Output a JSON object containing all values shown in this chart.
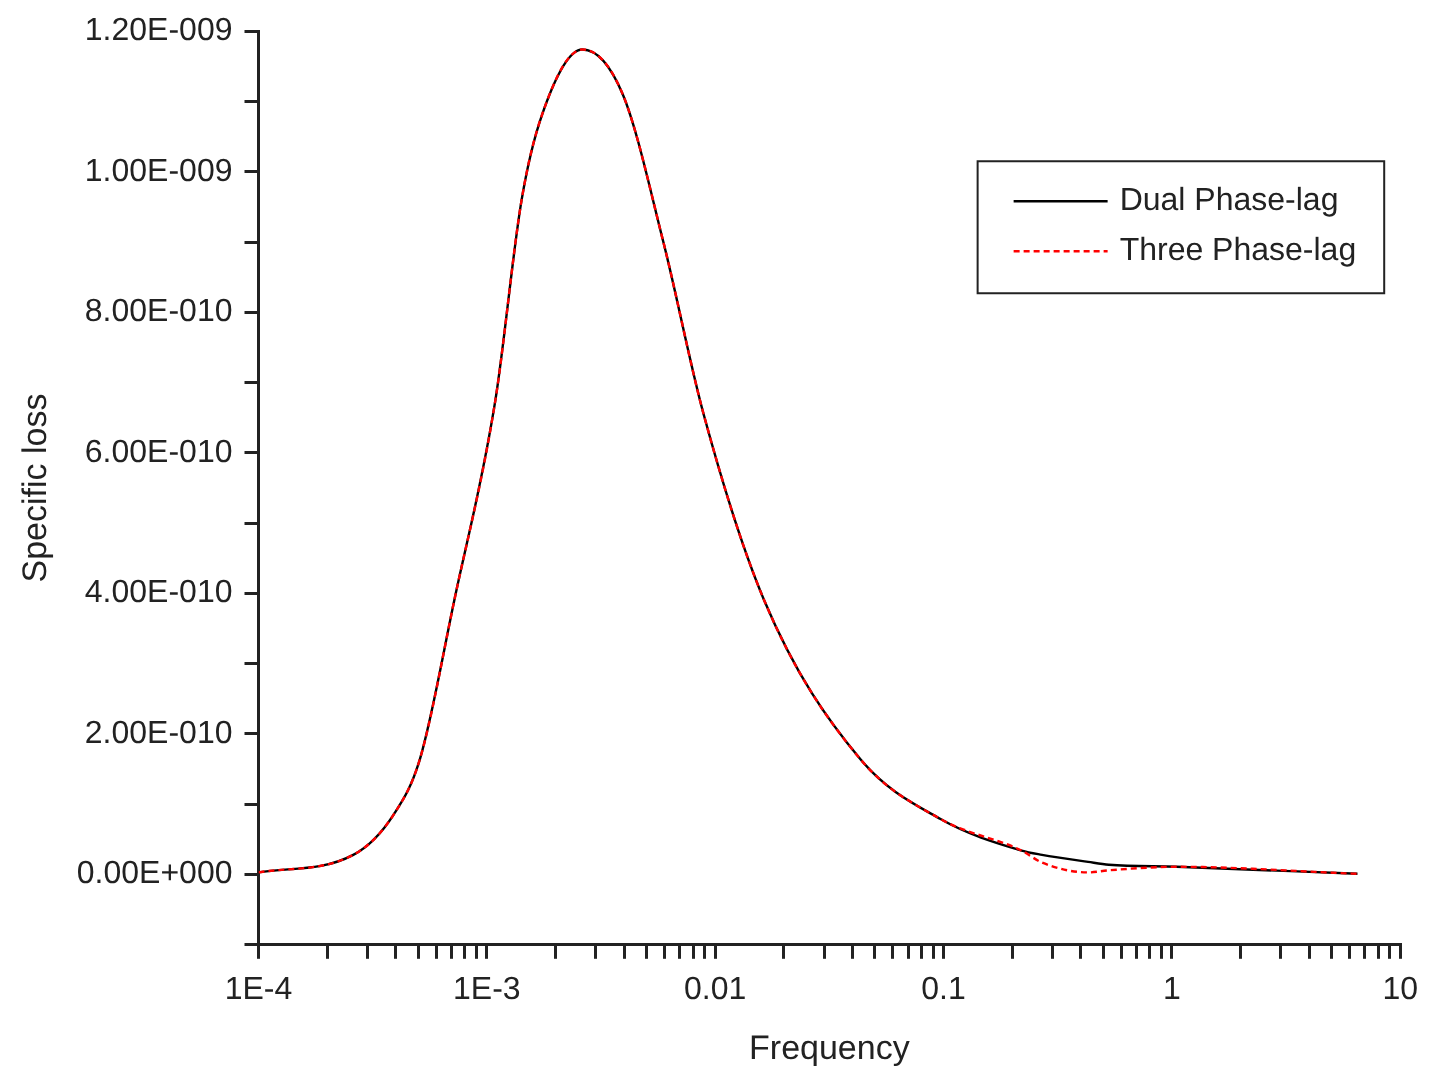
{
  "chart_data": {
    "type": "line",
    "xlabel": "Frequency",
    "ylabel": "Specific loss",
    "log": "x",
    "grid": false,
    "legend": "top right",
    "marker": "none",
    "x": [
      0.0001,
      0.00026,
      0.00039,
      0.00051,
      0.00072,
      0.00109,
      0.00142,
      0.00174,
      0.00262,
      0.00394,
      0.00593,
      0.0089,
      0.0164,
      0.043,
      0.097,
      0.22,
      0.27,
      0.43,
      0.53,
      1.05,
      6.5
    ],
    "series": [
      {
        "name": "Dual Phase-lag",
        "color": "#000000",
        "line_style": "solid",
        "values": [
          3e-12,
          2.8e-11,
          8.5e-11,
          1.65e-10,
          3.9e-10,
          6.75e-10,
          9.6e-10,
          1.08e-09,
          1.174e-09,
          1.11e-09,
          9e-10,
          6.55e-10,
          3.9e-10,
          1.65e-10,
          7.9e-11,
          3.4e-11,
          2.8e-11,
          1.8e-11,
          1.4e-11,
          1.1e-11,
          1e-12
        ]
      },
      {
        "name": "Three Phase-lag",
        "color": "#ff0000",
        "line_style": "dashed",
        "values": [
          3e-12,
          2.8e-11,
          8.5e-11,
          1.65e-10,
          3.9e-10,
          6.75e-10,
          9.6e-10,
          1.08e-09,
          1.174e-09,
          1.11e-09,
          9e-10,
          6.55e-10,
          3.9e-10,
          1.65e-10,
          7.9e-11,
          3.4e-11,
          1.7e-11,
          3e-12,
          6e-12,
          1.1e-11,
          1e-12
        ]
      }
    ],
    "xlim": [
      0.0001,
      10
    ],
    "xticks": [
      {
        "value": 0.0001,
        "label": "1E-4"
      },
      {
        "value": 0.0002,
        "label": null
      },
      {
        "value": 0.0003,
        "label": null
      },
      {
        "value": 0.0004,
        "label": null
      },
      {
        "value": 0.0005,
        "label": null
      },
      {
        "value": 0.0006,
        "label": null
      },
      {
        "value": 0.0007,
        "label": null
      },
      {
        "value": 0.0008,
        "label": null
      },
      {
        "value": 0.0009,
        "label": null
      },
      {
        "value": 0.001,
        "label": "1E-3"
      },
      {
        "value": 0.002,
        "label": null
      },
      {
        "value": 0.003,
        "label": null
      },
      {
        "value": 0.004,
        "label": null
      },
      {
        "value": 0.005,
        "label": null
      },
      {
        "value": 0.006,
        "label": null
      },
      {
        "value": 0.007,
        "label": null
      },
      {
        "value": 0.008,
        "label": null
      },
      {
        "value": 0.009,
        "label": null
      },
      0.01,
      {
        "value": 0.02,
        "label": null
      },
      {
        "value": 0.03,
        "label": null
      },
      {
        "value": 0.04,
        "label": null
      },
      {
        "value": 0.05,
        "label": null
      },
      {
        "value": 0.06,
        "label": null
      },
      {
        "value": 0.07,
        "label": null
      },
      {
        "value": 0.08,
        "label": null
      },
      {
        "value": 0.09,
        "label": null
      },
      0.1,
      {
        "value": 0.2,
        "label": null
      },
      {
        "value": 0.3,
        "label": null
      },
      {
        "value": 0.4,
        "label": null
      },
      {
        "value": 0.5,
        "label": null
      },
      {
        "value": 0.6,
        "label": null
      },
      {
        "value": 0.7,
        "label": null
      },
      {
        "value": 0.8,
        "label": null
      },
      {
        "value": 0.9,
        "label": null
      },
      1,
      {
        "value": 2,
        "label": null
      },
      {
        "value": 3,
        "label": null
      },
      {
        "value": 4,
        "label": null
      },
      {
        "value": 5,
        "label": null
      },
      {
        "value": 6,
        "label": null
      },
      {
        "value": 7,
        "label": null
      },
      {
        "value": 8,
        "label": null
      },
      {
        "value": 9,
        "label": null
      },
      10
    ],
    "ylim": [
      -1e-10,
      1.2e-09
    ],
    "yticks": [
      {
        "value": -1e-10,
        "label": null
      },
      {
        "value": 0,
        "label": "0.00E+000"
      },
      {
        "value": 1e-10,
        "label": null
      },
      {
        "value": 2e-10,
        "label": "2.00E-010"
      },
      {
        "value": 3e-10,
        "label": null
      },
      {
        "value": 4e-10,
        "label": "4.00E-010"
      },
      {
        "value": 5e-10,
        "label": null
      },
      {
        "value": 6e-10,
        "label": "6.00E-010"
      },
      {
        "value": 7e-10,
        "label": null
      },
      {
        "value": 8e-10,
        "label": "8.00E-010"
      },
      {
        "value": 9e-10,
        "label": null
      },
      {
        "value": 1e-09,
        "label": "1.00E-009"
      },
      {
        "value": 1.1e-09,
        "label": null
      },
      {
        "value": 1.2e-09,
        "label": "1.20E-009"
      }
    ]
  }
}
